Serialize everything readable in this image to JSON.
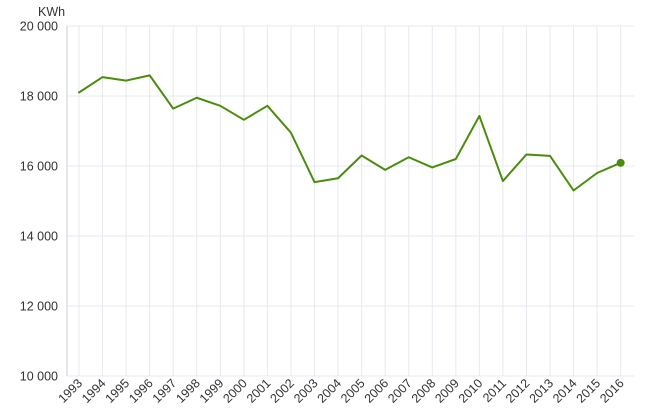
{
  "chart_data": {
    "type": "line",
    "ylabel": "KWh",
    "ylim": [
      10000,
      20000
    ],
    "yticks": [
      10000,
      12000,
      14000,
      16000,
      18000,
      20000
    ],
    "ytick_labels": [
      "10 000",
      "12 000",
      "14 000",
      "16 000",
      "18 000",
      "20 000"
    ],
    "categories": [
      "1993",
      "1994",
      "1995",
      "1996",
      "1997",
      "1998",
      "1999",
      "2000",
      "2001",
      "2002",
      "2003",
      "2004",
      "2005",
      "2006",
      "2007",
      "2008",
      "2009",
      "2010",
      "2011",
      "2012",
      "2013",
      "2014",
      "2015",
      "2016"
    ],
    "series": [
      {
        "values": [
          18100,
          18540,
          18440,
          18590,
          17640,
          17950,
          17720,
          17320,
          17720,
          16950,
          15540,
          15650,
          16300,
          15890,
          16250,
          15960,
          16200,
          17430,
          15570,
          16330,
          16290,
          15300,
          15800,
          16090
        ],
        "color": "#4a8c0c"
      }
    ],
    "grid": true,
    "last_point_marker": true
  },
  "colors": {
    "line": "#4a8c0c",
    "grid": "#e6e9f0",
    "axis": "#c8ccd6",
    "text": "#333333"
  }
}
